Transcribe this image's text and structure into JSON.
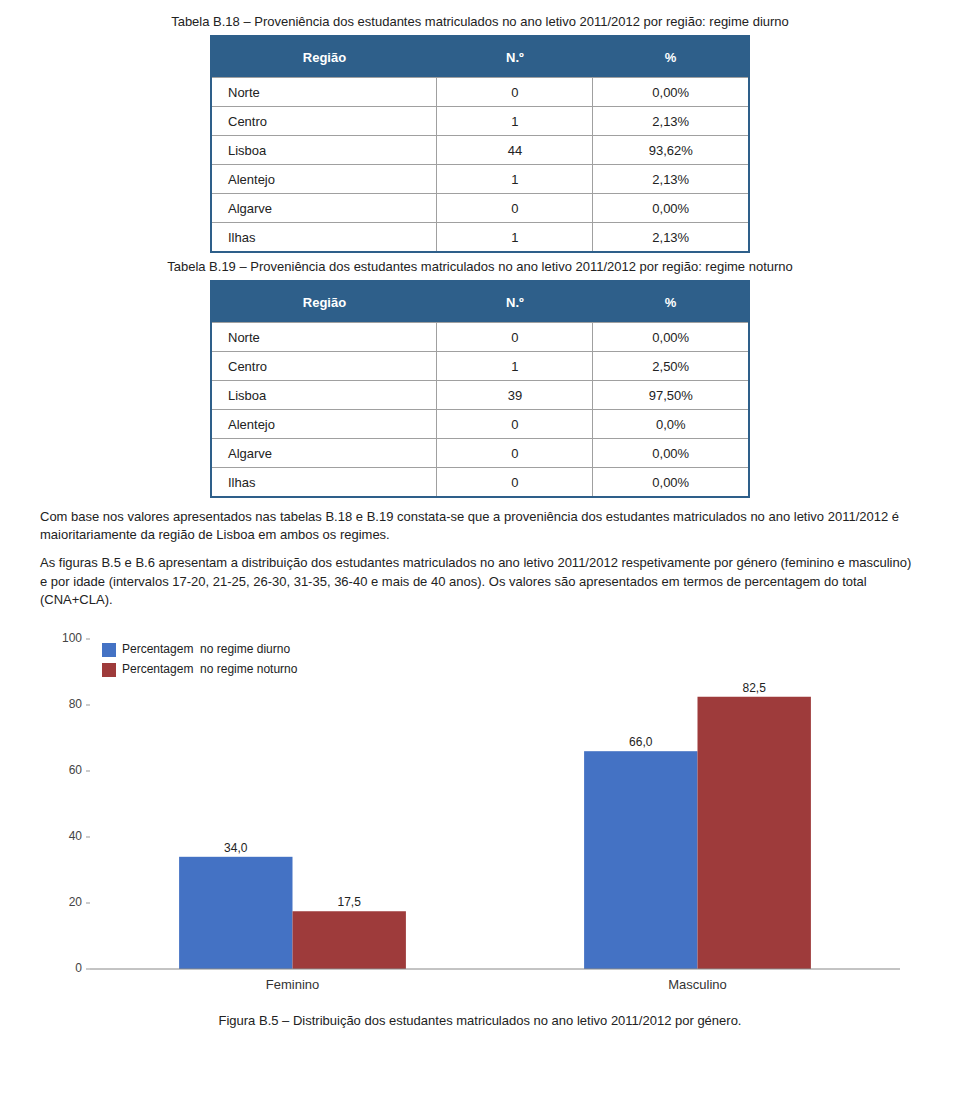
{
  "chart_data": [
    {
      "type": "table",
      "title": "Tabela B.18 – Proveniência dos estudantes matriculados no ano letivo 2011/2012 por região: regime diurno",
      "columns": [
        "Região",
        "N.º",
        "%"
      ],
      "rows": [
        [
          "Norte",
          "0",
          "0,00%"
        ],
        [
          "Centro",
          "1",
          "2,13%"
        ],
        [
          "Lisboa",
          "44",
          "93,62%"
        ],
        [
          "Alentejo",
          "1",
          "2,13%"
        ],
        [
          "Algarve",
          "0",
          "0,00%"
        ],
        [
          "Ilhas",
          "1",
          "2,13%"
        ]
      ],
      "color": "#2E5F8A"
    },
    {
      "type": "table",
      "title": "Tabela B.19 – Proveniência dos estudantes matriculados no ano letivo 2011/2012 por região: regime noturno",
      "columns": [
        "Região",
        "N.º",
        "%"
      ],
      "rows": [
        [
          "Norte",
          "0",
          "0,00%"
        ],
        [
          "Centro",
          "1",
          "2,50%"
        ],
        [
          "Lisboa",
          "39",
          "97,50%"
        ],
        [
          "Alentejo",
          "0",
          "0,0%"
        ],
        [
          "Algarve",
          "0",
          "0,00%"
        ],
        [
          "Ilhas",
          "0",
          "0,00%"
        ]
      ],
      "color": "#2E5F8A"
    },
    {
      "type": "text",
      "paragraphs": [
        "Com base nos valores apresentados nas tabelas B.18 e B.19 constata-se que a proveniência dos estudantes matriculados no ano letivo 2011/2012 é maioritariamente da região de Lisboa em ambos os regimes.",
        "As figuras B.5 e B.6 apresentam a distribuição dos estudantes matriculados no ano letivo 2011/2012 respetivamente por género (feminino e masculino) e por idade (intervalos 17-20, 21-25, 26-30, 31-35, 36-40 e mais de 40 anos). Os valores são apresentados em termos de percentagem do total (CNA+CLA)."
      ]
    },
    {
      "type": "bar",
      "title": "Figura B.5 – Distribuição dos estudantes matriculados no ano letivo 2011/2012 por género.",
      "categories": [
        "Feminino",
        "Masculino"
      ],
      "series": [
        {
          "name": "Percentagem  no regime diurno",
          "color": "#4472C4",
          "values": [
            34.0,
            66.0
          ],
          "value_labels": [
            "34,0",
            "66,0"
          ]
        },
        {
          "name": "Percentagem  no regime noturno",
          "color": "#9E3B3B",
          "values": [
            17.5,
            82.5
          ],
          "value_labels": [
            "17,5",
            "82,5"
          ]
        }
      ],
      "ylim": [
        0,
        100
      ],
      "yticks": [
        0,
        20,
        40,
        60,
        80,
        100
      ],
      "grid": false,
      "legend": "upper left",
      "data_labels": true
    }
  ]
}
